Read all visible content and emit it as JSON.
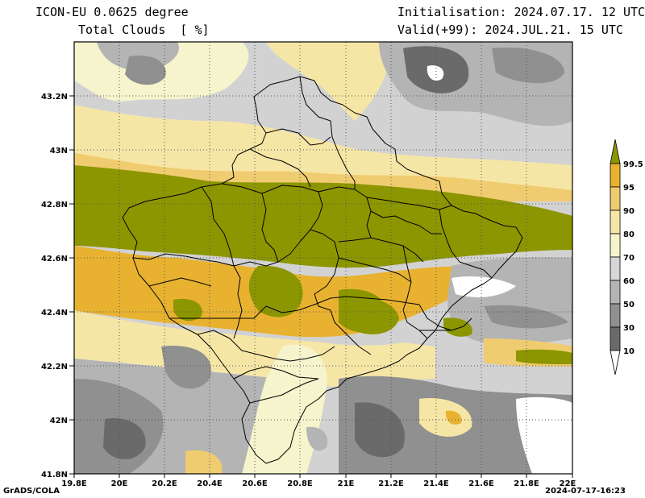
{
  "header": {
    "title_line1": "ICON-EU 0.0625 degree",
    "title_line2": "Total Clouds  [ %]",
    "init": "Initialisation: 2024.07.17. 12 UTC",
    "valid": "Valid(+99): 2024.JUL.21. 15 UTC"
  },
  "footer": {
    "credit": "GrADS/COLA",
    "timestamp": "2024-07-17-16:23"
  },
  "axes": {
    "lat_labels": [
      "43.2N",
      "43N",
      "42.8N",
      "42.6N",
      "42.4N",
      "42.2N",
      "42N",
      "41.8N"
    ],
    "lon_labels": [
      "19.8E",
      "20E",
      "20.2E",
      "20.4E",
      "20.6E",
      "20.8E",
      "21E",
      "21.2E",
      "21.4E",
      "21.6E",
      "21.8E",
      "22E"
    ]
  },
  "legend": {
    "labels": [
      "99.5",
      "95",
      "90",
      "80",
      "70",
      "60",
      "50",
      "30",
      "10"
    ],
    "colors": [
      "#8c9600",
      "#e8b230",
      "#f0cc70",
      "#f6e6a6",
      "#f6f4cc",
      "#d6d6d6",
      "#b4b4b4",
      "#909090",
      "#6a6a6a",
      "#ffffff"
    ]
  }
}
